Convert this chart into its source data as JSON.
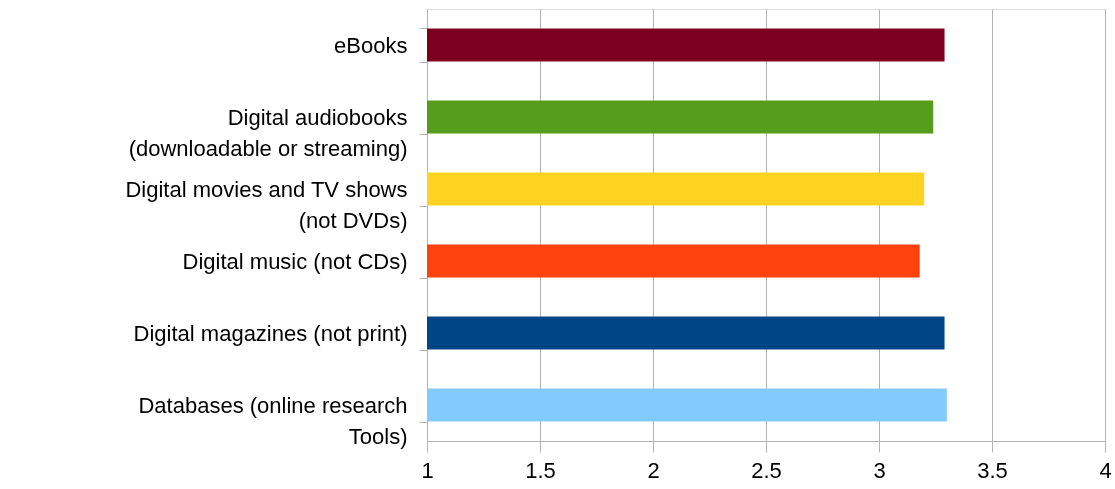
{
  "chart_data": {
    "type": "bar",
    "orientation": "horizontal",
    "categories": [
      "eBooks",
      "Digital audiobooks\n(downloadable or streaming)",
      "Digital movies and TV shows\n(not DVDs)",
      "Digital music (not CDs)",
      "Digital magazines (not print)",
      "Databases (online research\nTools)"
    ],
    "values": [
      3.29,
      3.24,
      3.2,
      3.18,
      3.29,
      3.3
    ],
    "colors": [
      "#7e0021",
      "#579d1c",
      "#ffd320",
      "#ff420e",
      "#004586",
      "#83caff"
    ],
    "xlim": [
      1,
      4
    ],
    "xticks": [
      1,
      1.5,
      2,
      2.5,
      3,
      3.5,
      4
    ],
    "grid": "x"
  }
}
